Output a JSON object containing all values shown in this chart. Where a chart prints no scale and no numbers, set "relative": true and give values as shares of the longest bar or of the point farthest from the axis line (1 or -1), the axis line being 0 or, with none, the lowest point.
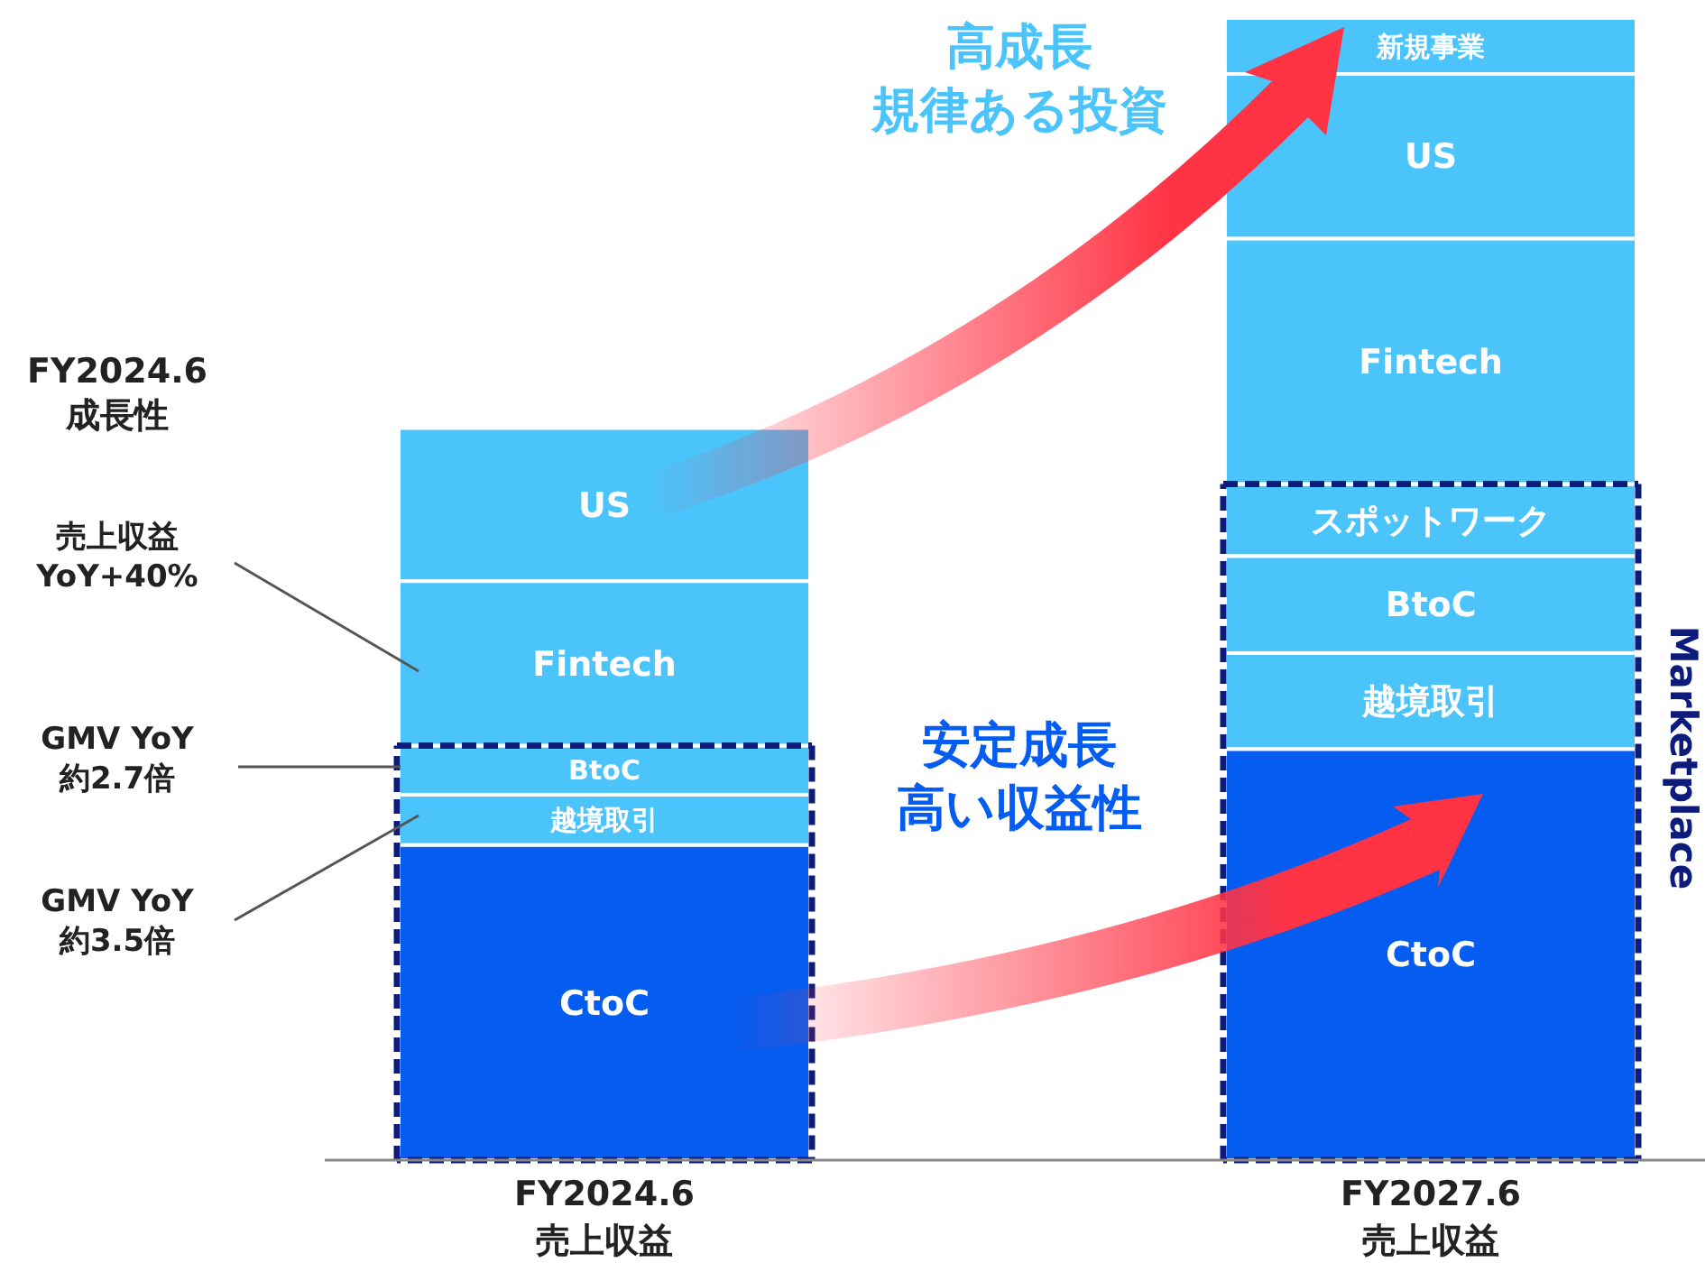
{
  "chart_data": {
    "type": "bar",
    "stacked": true,
    "relative": true,
    "categories": [
      "FY2024.6\n売上収益",
      "FY2027.6\n売上収益"
    ],
    "series": [
      {
        "name": "CtoC",
        "color": "#055cf0",
        "values": [
          0.276,
          0.36
        ]
      },
      {
        "name": "越境取引",
        "color": "#4ac4fb",
        "values": [
          0.044,
          0.084
        ]
      },
      {
        "name": "BtoC",
        "color": "#4ac4fb",
        "values": [
          0.043,
          0.085
        ]
      },
      {
        "name": "スポットワーク",
        "color": "#4ac4fb",
        "values": [
          null,
          0.063
        ]
      },
      {
        "name": "Fintech",
        "color": "#4ac4fb",
        "values": [
          0.144,
          0.215
        ]
      },
      {
        "name": "US",
        "color": "#4ac4fb",
        "values": [
          0.134,
          0.144
        ]
      },
      {
        "name": "新規事業",
        "color": "#4ac4fb",
        "values": [
          null,
          0.049
        ]
      }
    ],
    "annotations": [
      "FY2024.6\n成長性",
      "売上収益\nYoY+40%",
      "GMV YoY\n約2.7倍",
      "GMV YoY\n約3.5倍",
      "高成長",
      "規律ある投資",
      "安定成長",
      "高い収益性",
      "Marketplace"
    ]
  }
}
